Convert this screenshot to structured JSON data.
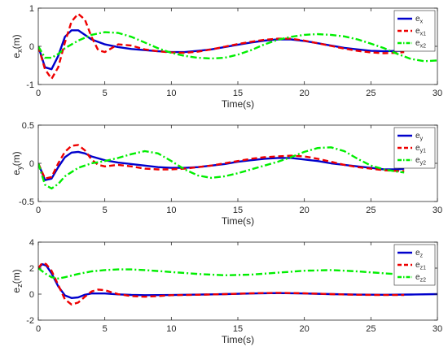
{
  "colors": {
    "e": "#0000cc",
    "e1": "#ee0000",
    "e2": "#00ee00",
    "axis": "#262626"
  },
  "chart_data": [
    {
      "type": "line",
      "xlabel": "Time(s)",
      "ylabel": {
        "main": "e",
        "sub": "x",
        "unit": "(m)"
      },
      "xlim": [
        0,
        30
      ],
      "ylim": [
        -1,
        1
      ],
      "xticks": [
        "0",
        "5",
        "10",
        "15",
        "20",
        "25",
        "30"
      ],
      "yticks": [
        "-1",
        "0",
        "1"
      ],
      "grid": false,
      "legend_position": "top-right",
      "series": [
        {
          "name": "e",
          "sub": "x",
          "style": "solid",
          "x": [
            0,
            0.5,
            1,
            1.5,
            2,
            2.5,
            3,
            3.5,
            4,
            5,
            6,
            7,
            8,
            9,
            10,
            11,
            12,
            13,
            14,
            15,
            16,
            17,
            18,
            19,
            20,
            21,
            22,
            23,
            24,
            25,
            26,
            27,
            27.5
          ],
          "y": [
            0,
            -0.55,
            -0.6,
            -0.25,
            0.25,
            0.42,
            0.42,
            0.3,
            0.18,
            0.05,
            -0.02,
            -0.07,
            -0.1,
            -0.13,
            -0.15,
            -0.15,
            -0.12,
            -0.08,
            -0.02,
            0.04,
            0.1,
            0.15,
            0.18,
            0.18,
            0.14,
            0.08,
            0.02,
            -0.04,
            -0.08,
            -0.12,
            -0.13,
            -0.12,
            -0.12
          ]
        },
        {
          "name": "e",
          "sub": "x1",
          "style": "dashed",
          "x": [
            0,
            0.5,
            1,
            1.5,
            2,
            2.5,
            3,
            3.5,
            4,
            4.5,
            5,
            5.5,
            6,
            7,
            8,
            9,
            10,
            11,
            12,
            13,
            14,
            15,
            16,
            17,
            18,
            19,
            20,
            21,
            22,
            23,
            24,
            25,
            26,
            27,
            27.5
          ],
          "y": [
            0,
            -0.6,
            -0.85,
            -0.55,
            0.1,
            0.65,
            0.85,
            0.7,
            0.25,
            -0.1,
            -0.15,
            -0.05,
            0.05,
            0.02,
            -0.08,
            -0.13,
            -0.16,
            -0.17,
            -0.14,
            -0.08,
            -0.01,
            0.06,
            0.12,
            0.17,
            0.2,
            0.2,
            0.15,
            0.08,
            0.01,
            -0.06,
            -0.12,
            -0.16,
            -0.18,
            -0.17,
            -0.15
          ]
        },
        {
          "name": "e",
          "sub": "x2",
          "style": "dashdot",
          "x": [
            0,
            0.5,
            1,
            1.5,
            2,
            3,
            4,
            5,
            6,
            7,
            8,
            9,
            10,
            11,
            12,
            13,
            14,
            15,
            16,
            17,
            18,
            19,
            20,
            21,
            22,
            23,
            24,
            25,
            26,
            27,
            28,
            29,
            30
          ],
          "y": [
            0,
            -0.3,
            -0.3,
            -0.2,
            -0.05,
            0.15,
            0.3,
            0.37,
            0.35,
            0.25,
            0.1,
            -0.05,
            -0.17,
            -0.25,
            -0.3,
            -0.32,
            -0.3,
            -0.22,
            -0.1,
            0.05,
            0.17,
            0.25,
            0.3,
            0.32,
            0.3,
            0.26,
            0.18,
            0.07,
            -0.05,
            -0.2,
            -0.33,
            -0.39,
            -0.37
          ]
        }
      ]
    },
    {
      "type": "line",
      "xlabel": "Time(s)",
      "ylabel": {
        "main": "e",
        "sub": "y",
        "unit": "(m)"
      },
      "xlim": [
        0,
        30
      ],
      "ylim": [
        -0.5,
        0.5
      ],
      "xticks": [
        "0",
        "5",
        "10",
        "15",
        "20",
        "25",
        "30"
      ],
      "yticks": [
        "-0.5",
        "0",
        "0.5"
      ],
      "grid": false,
      "legend_position": "top-right",
      "series": [
        {
          "name": "e",
          "sub": "y",
          "style": "solid",
          "x": [
            0,
            0.5,
            1,
            1.5,
            2,
            2.5,
            3,
            3.5,
            4,
            5,
            6,
            7,
            8,
            9,
            10,
            11,
            12,
            13,
            14,
            15,
            16,
            17,
            18,
            19,
            20,
            21,
            22,
            23,
            24,
            25,
            26,
            27,
            27.5
          ],
          "y": [
            0,
            -0.22,
            -0.2,
            -0.05,
            0.08,
            0.14,
            0.15,
            0.13,
            0.09,
            0.04,
            0.01,
            -0.01,
            -0.03,
            -0.05,
            -0.06,
            -0.06,
            -0.05,
            -0.03,
            -0.01,
            0.02,
            0.04,
            0.06,
            0.07,
            0.07,
            0.05,
            0.03,
            0.0,
            -0.02,
            -0.04,
            -0.06,
            -0.08,
            -0.08,
            -0.07
          ]
        },
        {
          "name": "e",
          "sub": "y1",
          "style": "dashed",
          "x": [
            0,
            0.5,
            1,
            1.5,
            2,
            2.5,
            3,
            3.5,
            4,
            4.5,
            5,
            6,
            7,
            8,
            9,
            10,
            11,
            12,
            13,
            14,
            15,
            16,
            17,
            18,
            19,
            20,
            21,
            22,
            23,
            24,
            25,
            26,
            27,
            27.5
          ],
          "y": [
            0,
            -0.2,
            -0.18,
            0.0,
            0.15,
            0.23,
            0.24,
            0.17,
            0.05,
            -0.02,
            -0.04,
            -0.02,
            -0.04,
            -0.07,
            -0.08,
            -0.08,
            -0.07,
            -0.05,
            -0.03,
            0.0,
            0.03,
            0.06,
            0.08,
            0.09,
            0.1,
            0.09,
            0.06,
            0.02,
            -0.02,
            -0.05,
            -0.07,
            -0.09,
            -0.1,
            -0.1
          ]
        },
        {
          "name": "e",
          "sub": "y2",
          "style": "dashdot",
          "x": [
            0,
            0.5,
            1,
            1.5,
            2,
            3,
            4,
            5,
            6,
            7,
            8,
            9,
            10,
            11,
            12,
            13,
            14,
            15,
            16,
            17,
            18,
            19,
            20,
            21,
            22,
            23,
            24,
            25,
            26,
            27,
            27.5
          ],
          "y": [
            0,
            -0.28,
            -0.33,
            -0.27,
            -0.17,
            -0.06,
            0.0,
            0.03,
            0.07,
            0.12,
            0.16,
            0.13,
            0.03,
            -0.08,
            -0.16,
            -0.19,
            -0.17,
            -0.13,
            -0.08,
            -0.03,
            0.02,
            0.08,
            0.15,
            0.2,
            0.21,
            0.16,
            0.06,
            -0.03,
            -0.08,
            -0.11,
            -0.12
          ]
        }
      ]
    },
    {
      "type": "line",
      "xlabel": "Time(s)",
      "ylabel": {
        "main": "e",
        "sub": "z",
        "unit": "(m)"
      },
      "xlim": [
        0,
        30
      ],
      "ylim": [
        -2,
        4
      ],
      "xticks": [
        "0",
        "5",
        "10",
        "15",
        "20",
        "25",
        "30"
      ],
      "yticks": [
        "-2",
        "0",
        "2",
        "4"
      ],
      "grid": false,
      "legend_position": "top-right",
      "series": [
        {
          "name": "e",
          "sub": "z",
          "style": "solid",
          "x": [
            0,
            0.3,
            0.6,
            1,
            1.5,
            2,
            2.5,
            3,
            3.5,
            4,
            5,
            6,
            7,
            8,
            10,
            12,
            14,
            16,
            18,
            20,
            22,
            24,
            26,
            28,
            30
          ],
          "y": [
            2.0,
            2.3,
            2.2,
            1.6,
            0.6,
            -0.1,
            -0.3,
            -0.25,
            -0.05,
            0.05,
            0.05,
            -0.02,
            -0.06,
            -0.08,
            -0.07,
            -0.04,
            0.0,
            0.05,
            0.08,
            0.05,
            0.0,
            -0.04,
            -0.05,
            -0.03,
            0.0
          ]
        },
        {
          "name": "e",
          "sub": "z1",
          "style": "dashed",
          "x": [
            0,
            0.3,
            0.6,
            1,
            1.5,
            2,
            2.5,
            3,
            3.5,
            4,
            4.5,
            5,
            5.5,
            6,
            7,
            8,
            9,
            10,
            12,
            14,
            16,
            18,
            20,
            22,
            24,
            26,
            27.5
          ],
          "y": [
            2.0,
            2.4,
            2.3,
            1.8,
            0.7,
            -0.4,
            -0.8,
            -0.65,
            -0.2,
            0.2,
            0.35,
            0.3,
            0.15,
            0.0,
            -0.15,
            -0.2,
            -0.15,
            -0.08,
            -0.05,
            0.0,
            0.06,
            0.1,
            0.06,
            0.0,
            -0.05,
            -0.07,
            -0.06
          ]
        },
        {
          "name": "e",
          "sub": "z2",
          "style": "dashdot",
          "x": [
            0,
            0.5,
            1,
            1.5,
            2,
            3,
            4,
            5,
            6,
            7,
            8,
            10,
            12,
            14,
            16,
            18,
            20,
            22,
            24,
            26,
            27.5
          ],
          "y": [
            2.0,
            1.6,
            1.3,
            1.2,
            1.3,
            1.55,
            1.75,
            1.85,
            1.9,
            1.9,
            1.85,
            1.7,
            1.55,
            1.45,
            1.5,
            1.65,
            1.8,
            1.85,
            1.75,
            1.6,
            1.5
          ]
        }
      ]
    }
  ]
}
